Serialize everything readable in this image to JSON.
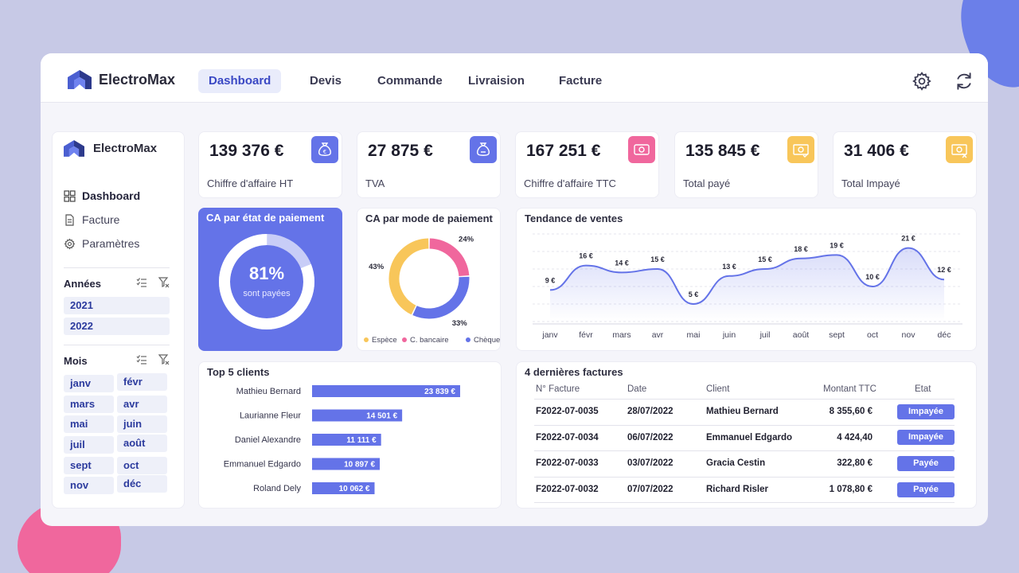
{
  "app": {
    "name": "ElectroMax"
  },
  "nav": [
    {
      "label": "Dashboard",
      "active": true
    },
    {
      "label": "Devis"
    },
    {
      "label": "Commande"
    },
    {
      "label": "Livraision"
    },
    {
      "label": "Facture"
    }
  ],
  "top_icons": [
    "gear-icon",
    "refresh-icon"
  ],
  "sidebar": {
    "brand": "ElectroMax",
    "menu": [
      {
        "label": "Dashboard",
        "icon": "grid-icon",
        "active": true
      },
      {
        "label": "Facture",
        "icon": "document-icon"
      },
      {
        "label": "Paramètres",
        "icon": "gear-icon"
      }
    ],
    "years": {
      "title": "Années",
      "items": [
        "2021",
        "2022"
      ]
    },
    "months": {
      "title": "Mois",
      "items": [
        "janv",
        "févr",
        "mars",
        "avr",
        "mai",
        "juin",
        "juil",
        "août",
        "sept",
        "oct",
        "nov",
        "déc"
      ]
    }
  },
  "kpis": [
    {
      "value": "139 376 €",
      "label": "Chiffre d'affaire HT",
      "icon": "money-bag-icon",
      "icon_color": "#6473e8"
    },
    {
      "value": "27 875 €",
      "label": "TVA",
      "icon": "tax-bag-icon",
      "icon_color": "#6473e8"
    },
    {
      "value": "167 251 €",
      "label": "Chiffre d'affaire TTC",
      "icon": "cash-icon",
      "icon_color": "#f0679d"
    },
    {
      "value": "135 845 €",
      "label": "Total payé",
      "icon": "banknote-check-icon",
      "icon_color": "#f8c65a"
    },
    {
      "value": "31 406 €",
      "label": "Total Impayé",
      "icon": "banknote-cancel-icon",
      "icon_color": "#f8c65a"
    }
  ],
  "payment_status": {
    "title": "CA par état de paiement",
    "percent": "81%",
    "caption": "sont payées",
    "paid_fraction": 0.81
  },
  "chart_data": [
    {
      "type": "pie",
      "title": "CA par mode de paiement",
      "categories": [
        "Espèce",
        "C. bancaire",
        "Chèque"
      ],
      "values": [
        43,
        24,
        33
      ],
      "labels": [
        "43%",
        "24%",
        "33%"
      ],
      "colors": [
        "#f8c65a",
        "#f0679d",
        "#6473e8"
      ]
    },
    {
      "type": "line",
      "title": "Tendance de ventes",
      "categories": [
        "janv",
        "févr",
        "mars",
        "avr",
        "mai",
        "juin",
        "juil",
        "août",
        "sept",
        "oct",
        "nov",
        "déc"
      ],
      "values": [
        9,
        16,
        14,
        15,
        5,
        13,
        15,
        18,
        19,
        10,
        21,
        12
      ],
      "labels": [
        "9 €",
        "16 €",
        "14 €",
        "15 €",
        "5 €",
        "13 €",
        "15 €",
        "18 €",
        "19 €",
        "10 €",
        "21 €",
        "12 €"
      ],
      "ylim": [
        0,
        25
      ],
      "grid": true,
      "color": "#6473e8"
    },
    {
      "type": "bar",
      "title": "Top 5 clients",
      "orientation": "horizontal",
      "categories": [
        "Mathieu Bernard",
        "Laurianne Fleur",
        "Daniel Alexandre",
        "Emmanuel Edgardo",
        "Roland Dely"
      ],
      "values": [
        23839,
        14501,
        11111,
        10897,
        10062
      ],
      "labels": [
        "23 839 €",
        "14 501 €",
        "11 111 €",
        "10 897 €",
        "10 062 €"
      ],
      "color": "#6473e8"
    }
  ],
  "invoices": {
    "title": "4 dernières factures",
    "columns": [
      "N° Facture",
      "Date",
      "Client",
      "Montant TTC",
      "Etat"
    ],
    "rows": [
      {
        "id": "F2022-07-0035",
        "date": "28/07/2022",
        "client": "Mathieu Bernard",
        "amount": "8 355,60 €",
        "status": "Impayée"
      },
      {
        "id": "F2022-07-0034",
        "date": "06/07/2022",
        "client": "Emmanuel Edgardo",
        "amount": "4 424,40",
        "status": "Impayée"
      },
      {
        "id": "F2022-07-0033",
        "date": "03/07/2022",
        "client": "Gracia Cestin",
        "amount": "322,80 €",
        "status": "Payée"
      },
      {
        "id": "F2022-07-0032",
        "date": "07/07/2022",
        "client": "Richard Risler",
        "amount": "1 078,80 €",
        "status": "Payée"
      }
    ]
  }
}
